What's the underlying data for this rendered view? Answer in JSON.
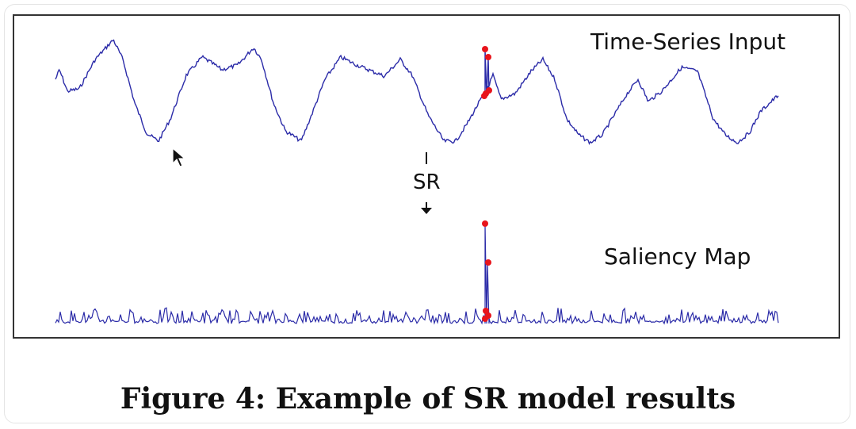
{
  "figure": {
    "top_label": "Time-Series Input",
    "bottom_label": "Saliency Map",
    "transform_label": "SR",
    "caption": "Figure 4: Example of SR model results"
  },
  "style": {
    "line_color": "#2b2ba8",
    "anomaly_color": "#e8141c"
  }
}
